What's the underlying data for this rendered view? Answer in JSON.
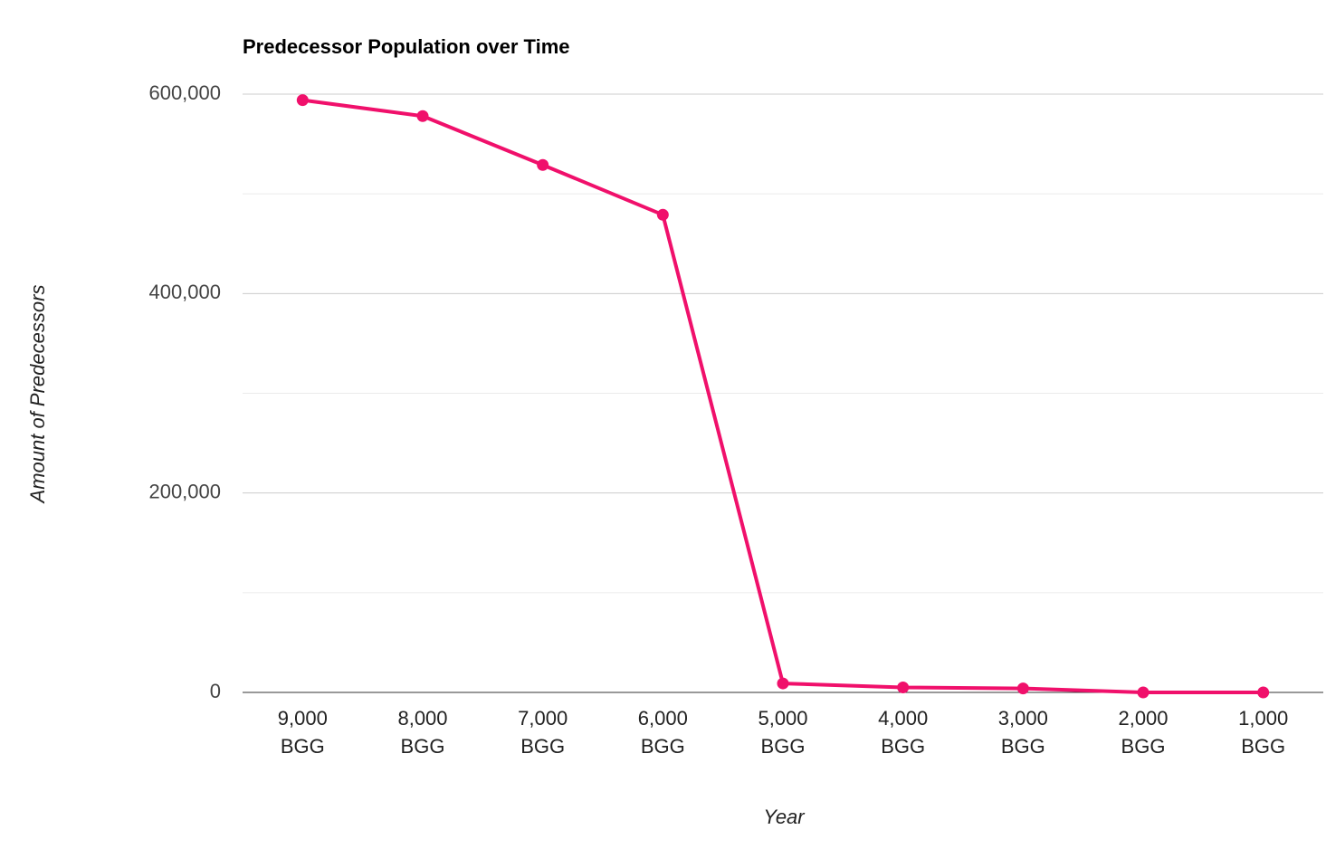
{
  "chart_data": {
    "type": "line",
    "title": "Predecessor Population over Time",
    "x_label": "Year",
    "y_label": "Amount of Predecessors",
    "categories": [
      "9,000 BGG",
      "8,000 BGG",
      "7,000 BGG",
      "6,000 BGG",
      "5,000 BGG",
      "4,000 BGG",
      "3,000 BGG",
      "2,000 BGG",
      "1,000 BGG"
    ],
    "values": [
      594000,
      578000,
      529000,
      479000,
      9000,
      5000,
      4000,
      0,
      0
    ],
    "color": "#f0106b",
    "ylim": [
      0,
      600000
    ],
    "yticks": [
      {
        "value": 0,
        "label": "0"
      },
      {
        "value": 200000,
        "label": "200,000"
      },
      {
        "value": 400000,
        "label": "400,000"
      },
      {
        "value": 600000,
        "label": "600,000"
      }
    ],
    "minor_yticks": [
      100000,
      300000,
      500000
    ],
    "grid": true
  }
}
